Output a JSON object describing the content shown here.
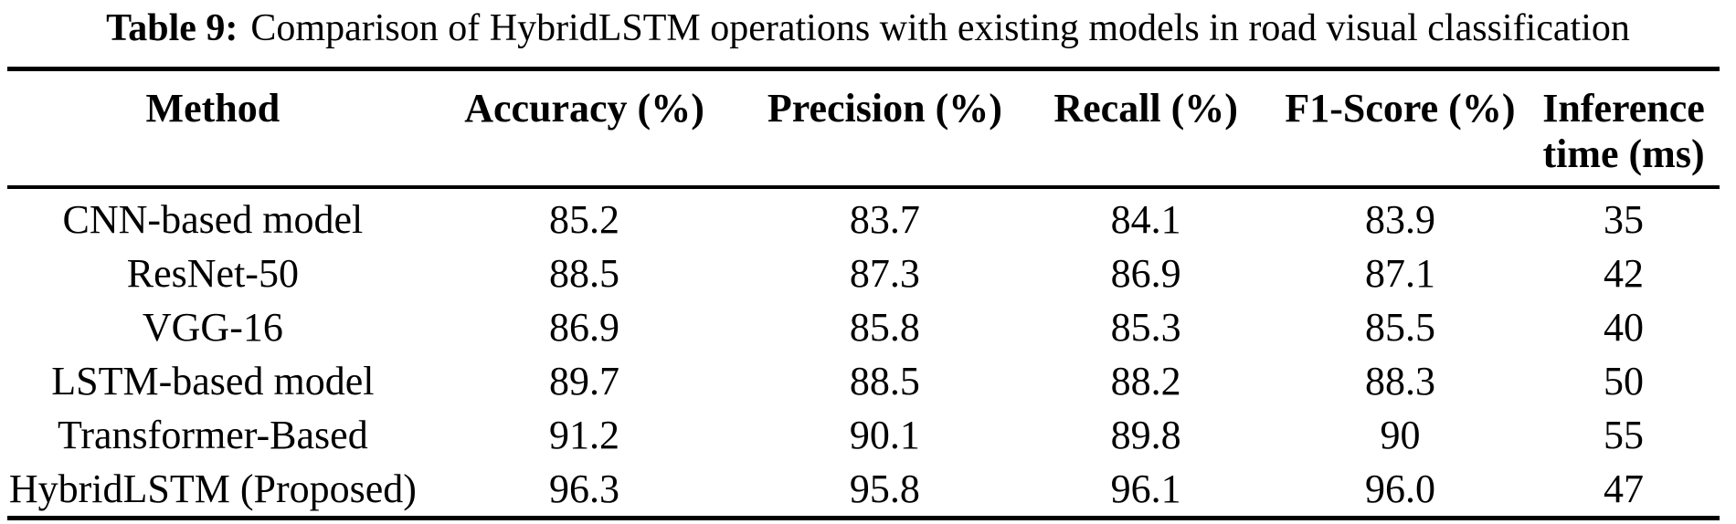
{
  "caption": {
    "label": "Table 9:",
    "text": "Comparison of HybridLSTM operations with existing models in road visual classification"
  },
  "table": {
    "headers": [
      "Method",
      "Accuracy (%)",
      "Precision (%)",
      "Recall (%)",
      "F1-Score (%)",
      "Inference time (ms)"
    ],
    "rows": [
      [
        "CNN-based model",
        "85.2",
        "83.7",
        "84.1",
        "83.9",
        "35"
      ],
      [
        "ResNet-50",
        "88.5",
        "87.3",
        "86.9",
        "87.1",
        "42"
      ],
      [
        "VGG-16",
        "86.9",
        "85.8",
        "85.3",
        "85.5",
        "40"
      ],
      [
        "LSTM-based model",
        "89.7",
        "88.5",
        "88.2",
        "88.3",
        "50"
      ],
      [
        "Transformer-Based",
        "91.2",
        "90.1",
        "89.8",
        "90",
        "55"
      ],
      [
        "HybridLSTM (Proposed)",
        "96.3",
        "95.8",
        "96.1",
        "96.0",
        "47"
      ]
    ]
  },
  "colors": {
    "text": "#000000",
    "background": "#ffffff",
    "rule": "#000000"
  }
}
